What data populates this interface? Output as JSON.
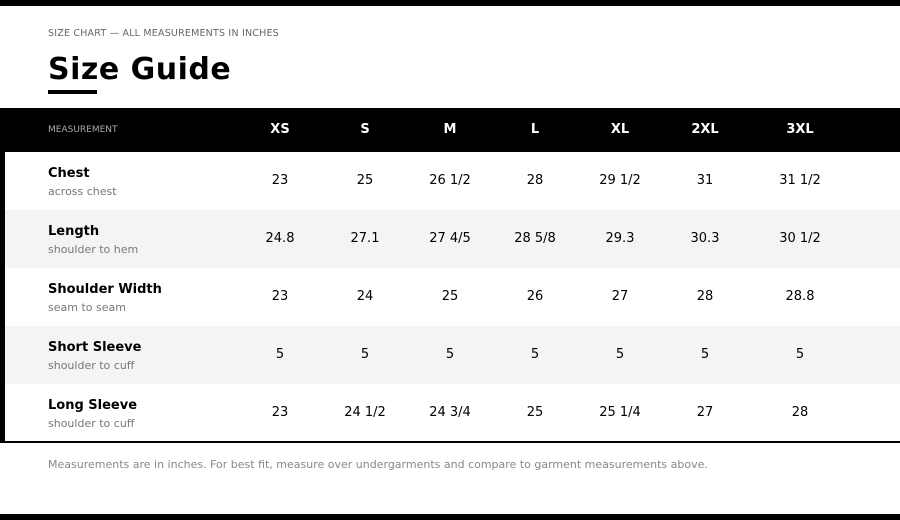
{
  "header": {
    "eyebrow": "SIZE CHART — ALL MEASUREMENTS IN INCHES",
    "title": "Size Guide"
  },
  "table": {
    "columns": [
      "MEASUREMENT",
      "XS",
      "S",
      "M",
      "L",
      "XL",
      "2XL",
      "3XL"
    ],
    "rows": [
      {
        "name": "Chest",
        "note": "across chest",
        "values": [
          "23",
          "25",
          "26 1/2",
          "28",
          "29 1/2",
          "31",
          "31 1/2"
        ]
      },
      {
        "name": "Length",
        "note": "shoulder to hem",
        "values": [
          "24.8",
          "27.1",
          "27 4/5",
          "28 5/8",
          "29.3",
          "30.3",
          "30 1/2"
        ]
      },
      {
        "name": "Shoulder Width",
        "note": "seam to seam",
        "values": [
          "23",
          "24",
          "25",
          "26",
          "27",
          "28",
          "28.8"
        ]
      },
      {
        "name": "Short Sleeve",
        "note": "shoulder to cuff",
        "values": [
          "5",
          "5",
          "5",
          "5",
          "5",
          "5",
          "5"
        ]
      },
      {
        "name": "Long Sleeve",
        "note": "shoulder to cuff",
        "values": [
          "23",
          "24 1/2",
          "24 3/4",
          "25",
          "25 1/4",
          "27",
          "28"
        ]
      }
    ]
  },
  "footnote": "Measurements are in inches. For best fit, measure over undergarments and compare to garment measurements above."
}
